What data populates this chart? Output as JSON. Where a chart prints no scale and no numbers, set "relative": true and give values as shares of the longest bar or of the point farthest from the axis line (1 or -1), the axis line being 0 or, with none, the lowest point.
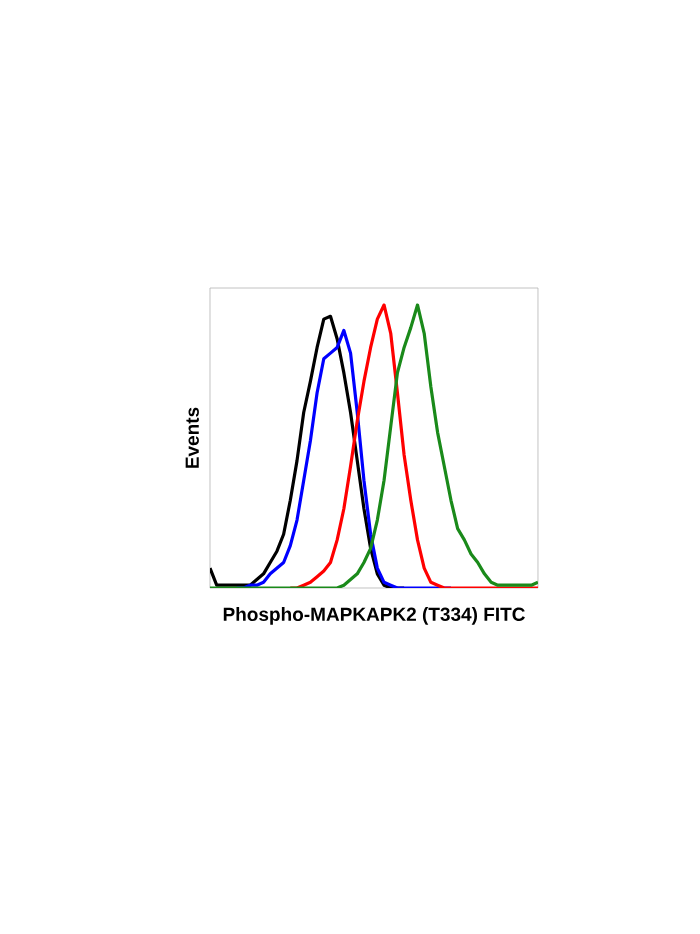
{
  "chart_data": {
    "type": "line",
    "relative": true,
    "xlabel": "Phospho-MAPKAPK2 (T334) FITC",
    "ylabel": "Events",
    "categories": [
      null,
      null,
      null,
      null,
      null,
      null,
      null,
      null,
      null,
      null,
      null,
      null,
      null,
      null,
      null,
      null,
      null,
      null,
      null,
      null,
      null,
      null,
      null,
      null,
      null,
      null,
      null,
      null,
      null,
      null,
      null,
      null,
      null,
      null,
      null,
      null,
      null,
      null,
      null,
      null,
      null,
      null,
      null,
      null,
      null,
      null,
      null,
      null,
      null,
      null
    ],
    "series": [
      {
        "color": "#000000",
        "values": [
          0.07,
          0.01,
          0.01,
          0.01,
          0.01,
          0.01,
          0.01,
          0.03,
          0.05,
          0.09,
          0.13,
          0.19,
          0.31,
          0.45,
          0.62,
          0.73,
          0.85,
          0.95,
          0.96,
          0.88,
          0.76,
          0.62,
          0.45,
          0.28,
          0.14,
          0.05,
          0.01,
          0,
          0,
          0,
          null,
          null,
          null,
          null,
          null,
          null,
          null,
          null,
          null,
          null,
          null,
          null,
          null,
          null,
          null,
          null,
          null,
          null,
          null,
          null
        ]
      },
      {
        "color": "#0000ff",
        "values": [
          null,
          null,
          null,
          null,
          0,
          0,
          0.01,
          0.01,
          0.02,
          0.05,
          0.07,
          0.09,
          0.15,
          0.24,
          0.38,
          0.52,
          0.69,
          0.81,
          0.83,
          0.85,
          0.91,
          0.83,
          0.62,
          0.38,
          0.19,
          0.07,
          0.02,
          0.01,
          0,
          0,
          0,
          0,
          0,
          0,
          0,
          0,
          0,
          null,
          null,
          null,
          null,
          null,
          null,
          null,
          null,
          null,
          null,
          null,
          null,
          null
        ]
      },
      {
        "color": "#ff0000",
        "values": [
          null,
          null,
          null,
          null,
          null,
          null,
          null,
          null,
          null,
          null,
          null,
          null,
          0,
          0,
          0.01,
          0.02,
          0.04,
          0.06,
          0.09,
          0.17,
          0.28,
          0.43,
          0.59,
          0.73,
          0.85,
          0.95,
          1.0,
          0.9,
          0.69,
          0.47,
          0.31,
          0.17,
          0.07,
          0.02,
          0.01,
          0,
          0,
          0,
          0,
          0,
          0,
          0,
          0,
          0,
          0,
          0,
          0,
          0,
          0,
          0
        ]
      },
      {
        "color": "#1a8a1a",
        "values": [
          0,
          0,
          0,
          0,
          0,
          0,
          0,
          0,
          0,
          0,
          0,
          0,
          0,
          0,
          0,
          0,
          0,
          0,
          0,
          0,
          0.01,
          0.03,
          0.05,
          0.09,
          0.14,
          0.24,
          0.38,
          0.57,
          0.76,
          0.85,
          0.92,
          1.0,
          0.9,
          0.71,
          0.55,
          0.43,
          0.31,
          0.21,
          0.17,
          0.12,
          0.09,
          0.05,
          0.02,
          0.01,
          0.01,
          0.01,
          0.01,
          0.01,
          0.01,
          0.02
        ]
      }
    ]
  }
}
